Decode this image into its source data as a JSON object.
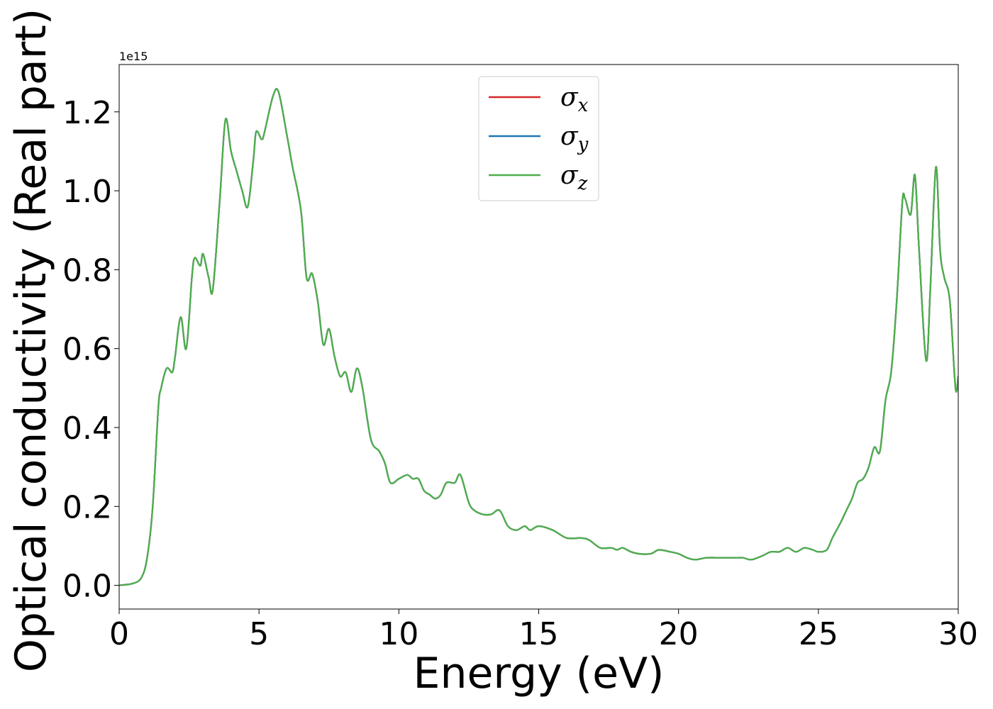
{
  "chart_data": {
    "type": "line",
    "title": "",
    "xlabel": "Energy (eV)",
    "ylabel": "Optical conductivity (Real part)",
    "y_offset_text": "1e15",
    "y_multiplier": 1000000000000000.0,
    "xlim": [
      0,
      30
    ],
    "ylim": [
      -0.06,
      1.32
    ],
    "xticks": [
      0,
      5,
      10,
      15,
      20,
      25,
      30
    ],
    "xtick_labels": [
      "0",
      "5",
      "10",
      "15",
      "20",
      "25",
      "30"
    ],
    "yticks": [
      0.0,
      0.2,
      0.4,
      0.6,
      0.8,
      1.0,
      1.2
    ],
    "ytick_labels": [
      "0.0",
      "0.2",
      "0.4",
      "0.6",
      "0.8",
      "1.0",
      "1.2"
    ],
    "grid": false,
    "legend_position": "upper-center",
    "legend": [
      {
        "symbol": "σ",
        "subscript": "x",
        "color": "#d62728"
      },
      {
        "symbol": "σ",
        "subscript": "y",
        "color": "#1f77b4"
      },
      {
        "symbol": "σ",
        "subscript": "z",
        "color": "#4daf4a"
      }
    ],
    "x": [
      0,
      0.5,
      0.8,
      1.0,
      1.2,
      1.4,
      1.5,
      1.7,
      1.9,
      2.0,
      2.2,
      2.4,
      2.6,
      2.7,
      2.9,
      3.0,
      3.2,
      3.35,
      3.6,
      3.8,
      4.0,
      4.2,
      4.4,
      4.6,
      4.8,
      4.9,
      5.1,
      5.2,
      5.5,
      5.7,
      6.0,
      6.2,
      6.5,
      6.7,
      6.9,
      7.1,
      7.3,
      7.5,
      7.7,
      7.9,
      8.1,
      8.3,
      8.5,
      8.7,
      9.0,
      9.3,
      9.5,
      9.7,
      10.0,
      10.3,
      10.5,
      10.7,
      10.9,
      11.1,
      11.3,
      11.5,
      11.7,
      12.0,
      12.2,
      12.5,
      12.7,
      13.0,
      13.3,
      13.6,
      13.9,
      14.2,
      14.5,
      14.7,
      15.0,
      15.5,
      16.0,
      16.5,
      16.8,
      17.2,
      17.6,
      17.8,
      18.0,
      18.3,
      18.6,
      19.0,
      19.3,
      19.7,
      20.0,
      20.3,
      20.6,
      21.0,
      21.5,
      22.0,
      22.3,
      22.6,
      23.0,
      23.3,
      23.6,
      23.9,
      24.2,
      24.5,
      24.8,
      25.0,
      25.3,
      25.5,
      25.8,
      26.0,
      26.2,
      26.4,
      26.6,
      26.8,
      27.0,
      27.2,
      27.4,
      27.6,
      27.8,
      28.0,
      28.1,
      28.3,
      28.45,
      28.6,
      28.85,
      29.0,
      29.2,
      29.35,
      29.5,
      29.7,
      29.9,
      30.0
    ],
    "series": [
      {
        "values": [
          0.0,
          0.005,
          0.02,
          0.07,
          0.2,
          0.45,
          0.5,
          0.55,
          0.54,
          0.58,
          0.68,
          0.6,
          0.78,
          0.83,
          0.81,
          0.84,
          0.78,
          0.75,
          0.98,
          1.18,
          1.1,
          1.05,
          1.0,
          0.96,
          1.08,
          1.15,
          1.13,
          1.15,
          1.24,
          1.25,
          1.14,
          1.06,
          0.95,
          0.78,
          0.79,
          0.72,
          0.61,
          0.65,
          0.58,
          0.53,
          0.54,
          0.49,
          0.55,
          0.5,
          0.37,
          0.34,
          0.31,
          0.26,
          0.27,
          0.28,
          0.27,
          0.27,
          0.24,
          0.23,
          0.22,
          0.23,
          0.26,
          0.26,
          0.28,
          0.21,
          0.19,
          0.18,
          0.18,
          0.19,
          0.15,
          0.14,
          0.15,
          0.14,
          0.15,
          0.14,
          0.12,
          0.12,
          0.115,
          0.095,
          0.095,
          0.09,
          0.095,
          0.085,
          0.08,
          0.08,
          0.09,
          0.085,
          0.08,
          0.07,
          0.065,
          0.07,
          0.07,
          0.07,
          0.07,
          0.065,
          0.075,
          0.085,
          0.085,
          0.095,
          0.085,
          0.095,
          0.09,
          0.085,
          0.09,
          0.12,
          0.16,
          0.19,
          0.22,
          0.26,
          0.27,
          0.3,
          0.35,
          0.34,
          0.47,
          0.54,
          0.72,
          0.97,
          0.98,
          0.94,
          1.04,
          0.85,
          0.57,
          0.75,
          1.06,
          0.85,
          0.78,
          0.72,
          0.5,
          0.53
        ]
      }
    ]
  }
}
